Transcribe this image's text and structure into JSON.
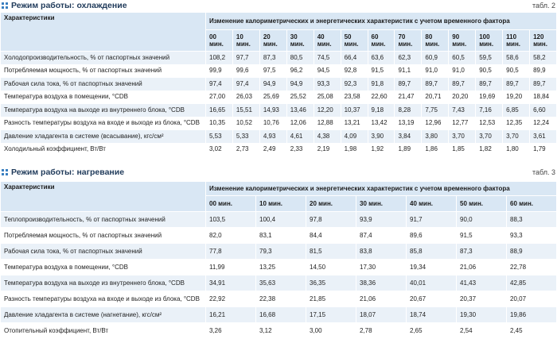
{
  "table1": {
    "title": "Режим работы: охлаждение",
    "number": "табл. 2",
    "char_header": "Характеристики",
    "group_header": "Изменение калориметрических и энергетических характеристик с учетом временного фактора",
    "columns": [
      {
        "num": "00",
        "unit": "мин."
      },
      {
        "num": "10",
        "unit": "мин."
      },
      {
        "num": "20",
        "unit": "мин."
      },
      {
        "num": "30",
        "unit": "мин."
      },
      {
        "num": "40",
        "unit": "мин."
      },
      {
        "num": "50",
        "unit": "мин."
      },
      {
        "num": "60",
        "unit": "мин."
      },
      {
        "num": "70",
        "unit": "мин."
      },
      {
        "num": "80",
        "unit": "мин."
      },
      {
        "num": "90",
        "unit": "мин."
      },
      {
        "num": "100",
        "unit": "мин."
      },
      {
        "num": "110",
        "unit": "мин."
      },
      {
        "num": "120",
        "unit": "мин."
      }
    ],
    "rows": [
      {
        "label": "Холодопроизводительность, % от паспортных значений",
        "values": [
          "108,2",
          "97,7",
          "87,3",
          "80,5",
          "74,5",
          "66,4",
          "63,6",
          "62,3",
          "60,9",
          "60,5",
          "59,5",
          "58,6",
          "58,2"
        ]
      },
      {
        "label": "Потребляемая мощность, % от паспортных значений",
        "values": [
          "99,9",
          "99,6",
          "97,5",
          "96,2",
          "94,5",
          "92,8",
          "91,5",
          "91,1",
          "91,0",
          "91,0",
          "90,5",
          "90,5",
          "89,9"
        ]
      },
      {
        "label": "Рабочая сила тока, % от паспортных значений",
        "values": [
          "97,4",
          "97,4",
          "94,9",
          "94,9",
          "93,3",
          "92,3",
          "91,8",
          "89,7",
          "89,7",
          "89,7",
          "89,7",
          "89,7",
          "89,7"
        ]
      },
      {
        "label": "Температура воздуха в помещении, °CDB",
        "values": [
          "27,00",
          "26,03",
          "25,69",
          "25,52",
          "25,08",
          "23,58",
          "22,60",
          "21,47",
          "20,71",
          "20,20",
          "19,69",
          "19,20",
          "18,84"
        ]
      },
      {
        "label": "Температура воздуха на выходе из внутреннего блока, °CDB",
        "values": [
          "16,65",
          "15,51",
          "14,93",
          "13,46",
          "12,20",
          "10,37",
          "9,18",
          "8,28",
          "7,75",
          "7,43",
          "7,16",
          "6,85",
          "6,60"
        ]
      },
      {
        "label": "Разность температуры воздуха на входе и выходе из блока, °CDB",
        "values": [
          "10,35",
          "10,52",
          "10,76",
          "12,06",
          "12,88",
          "13,21",
          "13,42",
          "13,19",
          "12,96",
          "12,77",
          "12,53",
          "12,35",
          "12,24"
        ]
      },
      {
        "label": "Давление хладагента в системе (всасывание), кгс/см²",
        "values": [
          "5,53",
          "5,33",
          "4,93",
          "4,61",
          "4,38",
          "4,09",
          "3,90",
          "3,84",
          "3,80",
          "3,70",
          "3,70",
          "3,70",
          "3,61"
        ]
      },
      {
        "label": "Холодильный коэффициент, Вт/Вт",
        "values": [
          "3,02",
          "2,73",
          "2,49",
          "2,33",
          "2,19",
          "1,98",
          "1,92",
          "1,89",
          "1,86",
          "1,85",
          "1,82",
          "1,80",
          "1,79"
        ]
      }
    ]
  },
  "table2": {
    "title": "Режим работы: нагревание",
    "number": "табл. 3",
    "char_header": "Характеристики",
    "group_header": "Изменение калориметрических и энергетических характеристик с учетом временного фактора",
    "columns": [
      "00 мин.",
      "10 мин.",
      "20 мин.",
      "30 мин.",
      "40 мин.",
      "50 мин.",
      "60 мин."
    ],
    "rows": [
      {
        "label": "Теплопроизводительность, % от паспортных значений",
        "values": [
          "103,5",
          "100,4",
          "97,8",
          "93,9",
          "91,7",
          "90,0",
          "88,3"
        ]
      },
      {
        "label": "Потребляемая мощность, % от паспортных значений",
        "values": [
          "82,0",
          "83,1",
          "84,4",
          "87,4",
          "89,6",
          "91,5",
          "93,3"
        ]
      },
      {
        "label": "Рабочая сила тока, % от паспортных значений",
        "values": [
          "77,8",
          "79,3",
          "81,5",
          "83,8",
          "85,8",
          "87,3",
          "88,9"
        ]
      },
      {
        "label": "Температура воздуха в помещении, °CDB",
        "values": [
          "11,99",
          "13,25",
          "14,50",
          "17,30",
          "19,34",
          "21,06",
          "22,78"
        ]
      },
      {
        "label": "Температура воздуха на выходе из внутреннего блока, °CDB",
        "values": [
          "34,91",
          "35,63",
          "36,35",
          "38,36",
          "40,01",
          "41,43",
          "42,85"
        ]
      },
      {
        "label": "Разность температуры воздуха на входе и выходе из блока, °CDB",
        "values": [
          "22,92",
          "22,38",
          "21,85",
          "21,06",
          "20,67",
          "20,37",
          "20,07"
        ]
      },
      {
        "label": "Давление хладагента в системе (нагнетание), кгс/см²",
        "values": [
          "16,21",
          "16,68",
          "17,15",
          "18,07",
          "18,74",
          "19,30",
          "19,86"
        ]
      },
      {
        "label": "Отопительный коэффициент, Вт/Вт",
        "values": [
          "3,26",
          "3,12",
          "3,00",
          "2,78",
          "2,65",
          "2,54",
          "2,45"
        ]
      }
    ]
  }
}
